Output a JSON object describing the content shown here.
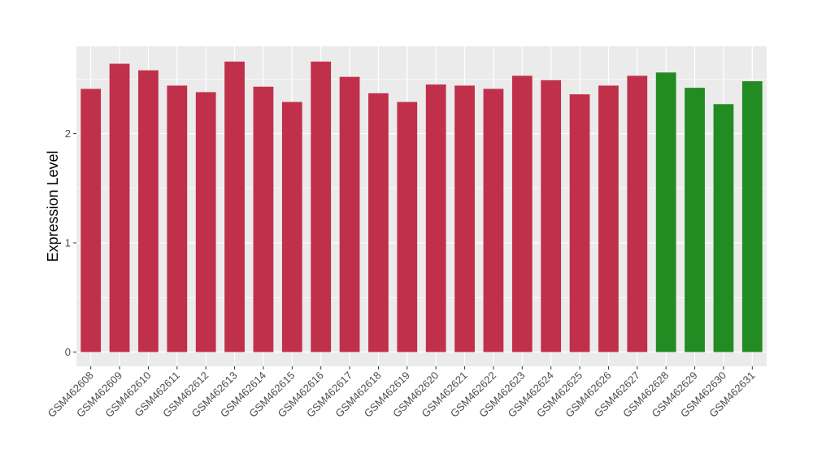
{
  "chart_data": {
    "type": "bar",
    "title": "",
    "xlabel": "",
    "ylabel": "Expression Level",
    "ylim": [
      -0.13,
      2.8
    ],
    "yticks": [
      0,
      1,
      2
    ],
    "grid": true,
    "legend": "none",
    "colors": {
      "panel_background": "#ebebeb",
      "major_grid": "#ffffff",
      "group_a": "#c0304a",
      "group_b": "#228b22"
    },
    "categories": [
      "GSM462608",
      "GSM462609",
      "GSM462610",
      "GSM462611",
      "GSM462612",
      "GSM462613",
      "GSM462614",
      "GSM462615",
      "GSM462616",
      "GSM462617",
      "GSM462618",
      "GSM462619",
      "GSM462620",
      "GSM462621",
      "GSM462622",
      "GSM462623",
      "GSM462624",
      "GSM462625",
      "GSM462626",
      "GSM462627",
      "GSM462628",
      "GSM462629",
      "GSM462630",
      "GSM462631"
    ],
    "values": [
      2.41,
      2.64,
      2.58,
      2.44,
      2.38,
      2.66,
      2.43,
      2.29,
      2.66,
      2.52,
      2.37,
      2.29,
      2.45,
      2.44,
      2.41,
      2.53,
      2.49,
      2.36,
      2.44,
      2.53,
      2.56,
      2.42,
      2.27,
      2.48
    ],
    "groups": [
      "a",
      "a",
      "a",
      "a",
      "a",
      "a",
      "a",
      "a",
      "a",
      "a",
      "a",
      "a",
      "a",
      "a",
      "a",
      "a",
      "a",
      "a",
      "a",
      "a",
      "b",
      "b",
      "b",
      "b"
    ]
  }
}
